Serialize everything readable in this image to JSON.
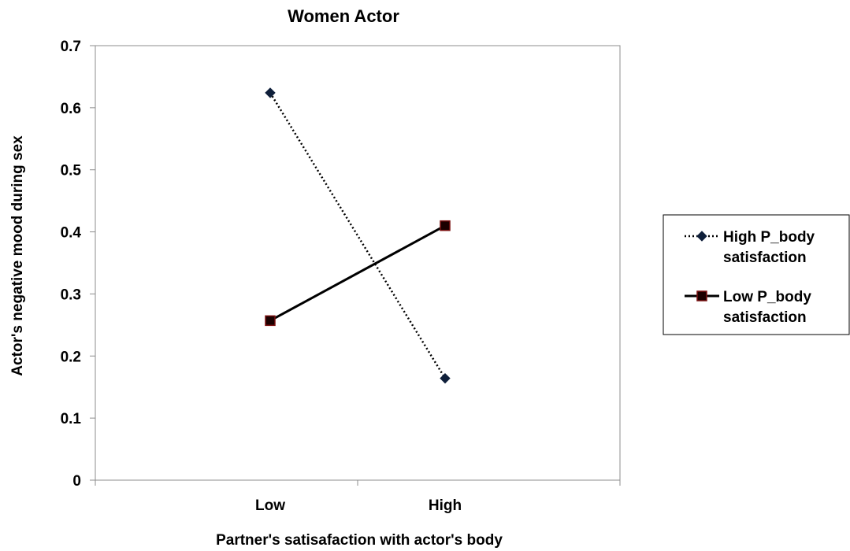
{
  "chart_data": {
    "type": "line",
    "title": "Women Actor",
    "xlabel": "Partner's satisafaction with actor's body",
    "ylabel": "Actor's negative mood during sex",
    "categories": [
      "Low",
      "High"
    ],
    "ylim": [
      0,
      0.7
    ],
    "yticks": [
      "0",
      "0.1",
      "0.2",
      "0.3",
      "0.4",
      "0.5",
      "0.6",
      "0.7"
    ],
    "grid": false,
    "legend_position": "right",
    "series": [
      {
        "name_lines": [
          "High P_body",
          "satisfaction"
        ],
        "values": [
          0.624,
          0.164
        ],
        "line_style": "dotted",
        "marker": "diamond",
        "color": "#000000",
        "marker_color": "#0f1f3a"
      },
      {
        "name_lines": [
          "Low P_body",
          "satisfaction"
        ],
        "values": [
          0.257,
          0.41
        ],
        "line_style": "solid",
        "marker": "square",
        "color": "#000000",
        "marker_color": "#1a0000",
        "marker_edge": "#7a1010"
      }
    ]
  }
}
